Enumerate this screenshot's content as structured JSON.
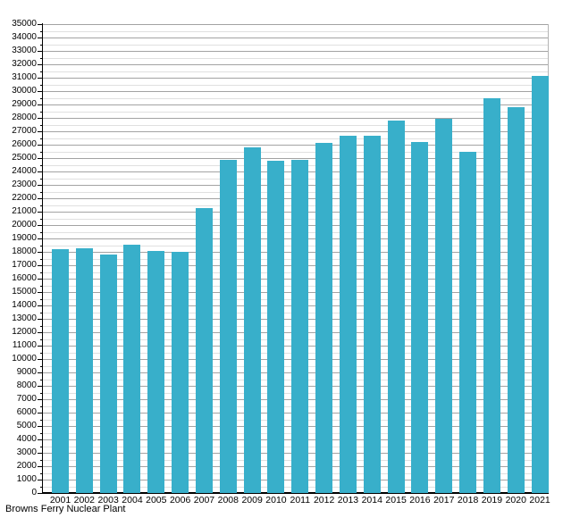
{
  "chart_data": {
    "type": "bar",
    "title": "Browns Ferry Nuclear Plant",
    "title_position": "bottom-left",
    "categories": [
      "2001",
      "2002",
      "2003",
      "2004",
      "2005",
      "2006",
      "2007",
      "2008",
      "2009",
      "2010",
      "2011",
      "2012",
      "2013",
      "2014",
      "2015",
      "2016",
      "2017",
      "2018",
      "2019",
      "2020",
      "2021"
    ],
    "values": [
      18226,
      18283,
      17786,
      18554,
      18089,
      17976,
      21253,
      24891,
      25797,
      24772,
      24840,
      26101,
      26656,
      26647,
      27790,
      26221,
      27902,
      25434,
      29458,
      28832,
      31112
    ],
    "xlabel": "",
    "ylabel": "",
    "ylim": [
      0,
      35000
    ],
    "y_major_step": 1000,
    "y_minor_step": 500,
    "grid": true,
    "legend": "none",
    "colors": {
      "bar": "#38afca",
      "major_grid": "#a3a3a3",
      "minor_grid": "#e0e0e0",
      "axis": "#000000",
      "text": "#000000",
      "background": "#ffffff"
    }
  }
}
